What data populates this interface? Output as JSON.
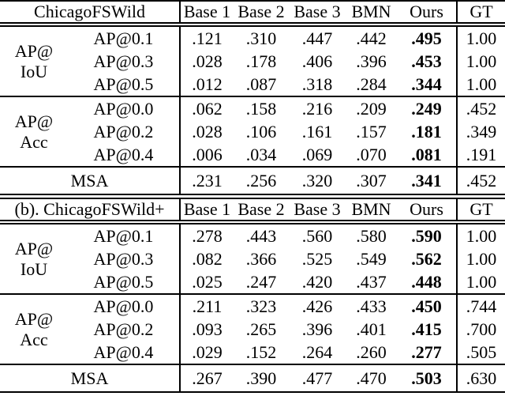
{
  "page": {
    "background_color": "#ffffff",
    "text_color": "#000000",
    "bold_column": "Ours"
  },
  "tables": [
    {
      "title": "ChicagoFSWild",
      "columns": [
        "Base 1",
        "Base 2",
        "Base 3",
        "BMN",
        "Ours",
        "GT"
      ],
      "groups": [
        {
          "label": {
            "line1": "AP@",
            "line2": "IoU"
          },
          "rows": [
            {
              "metric": "AP@0.1",
              "values": [
                ".121",
                ".310",
                ".447",
                ".442",
                ".495",
                "1.00"
              ]
            },
            {
              "metric": "AP@0.3",
              "values": [
                ".028",
                ".178",
                ".406",
                ".396",
                ".453",
                "1.00"
              ]
            },
            {
              "metric": "AP@0.5",
              "values": [
                ".012",
                ".087",
                ".318",
                ".284",
                ".344",
                "1.00"
              ]
            }
          ]
        },
        {
          "label": {
            "line1": "AP@",
            "line2": "Acc"
          },
          "rows": [
            {
              "metric": "AP@0.0",
              "values": [
                ".062",
                ".158",
                ".216",
                ".209",
                ".249",
                ".452"
              ]
            },
            {
              "metric": "AP@0.2",
              "values": [
                ".028",
                ".106",
                ".161",
                ".157",
                ".181",
                ".349"
              ]
            },
            {
              "metric": "AP@0.4",
              "values": [
                ".006",
                ".034",
                ".069",
                ".070",
                ".081",
                ".191"
              ]
            }
          ]
        }
      ],
      "summary": {
        "label": "MSA",
        "values": [
          ".231",
          ".256",
          ".320",
          ".307",
          ".341",
          ".452"
        ]
      }
    },
    {
      "title": "(b). ChicagoFSWild+",
      "columns": [
        "Base 1",
        "Base 2",
        "Base 3",
        "BMN",
        "Ours",
        "GT"
      ],
      "groups": [
        {
          "label": {
            "line1": "AP@",
            "line2": "IoU"
          },
          "rows": [
            {
              "metric": "AP@0.1",
              "values": [
                ".278",
                ".443",
                ".560",
                ".580",
                ".590",
                "1.00"
              ]
            },
            {
              "metric": "AP@0.3",
              "values": [
                ".082",
                ".366",
                ".525",
                ".549",
                ".562",
                "1.00"
              ]
            },
            {
              "metric": "AP@0.5",
              "values": [
                ".025",
                ".247",
                ".420",
                ".437",
                ".448",
                "1.00"
              ]
            }
          ]
        },
        {
          "label": {
            "line1": "AP@",
            "line2": "Acc"
          },
          "rows": [
            {
              "metric": "AP@0.0",
              "values": [
                ".211",
                ".323",
                ".426",
                ".433",
                ".450",
                ".744"
              ]
            },
            {
              "metric": "AP@0.2",
              "values": [
                ".093",
                ".265",
                ".396",
                ".401",
                ".415",
                ".700"
              ]
            },
            {
              "metric": "AP@0.4",
              "values": [
                ".029",
                ".152",
                ".264",
                ".260",
                ".277",
                ".505"
              ]
            }
          ]
        }
      ],
      "summary": {
        "label": "MSA",
        "values": [
          ".267",
          ".390",
          ".477",
          ".470",
          ".503",
          ".630"
        ]
      }
    }
  ]
}
